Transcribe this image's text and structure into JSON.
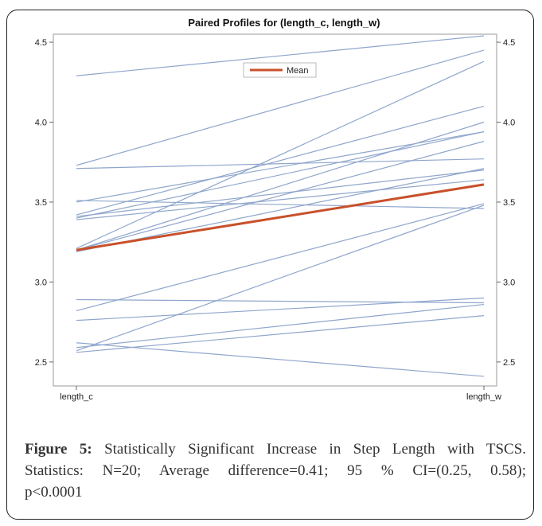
{
  "chart_data": {
    "type": "line",
    "title": "Paired Profiles for (length_c, length_w)",
    "categories": [
      "length_c",
      "length_w"
    ],
    "ylim": [
      2.35,
      4.55
    ],
    "yticks": [
      "2.5",
      "3.0",
      "3.5",
      "4.0",
      "4.5"
    ],
    "ytick_values": [
      2.5,
      3.0,
      3.5,
      4.0,
      4.5
    ],
    "grid": false,
    "legend": {
      "position": "top-center",
      "label": "Mean"
    },
    "colors": {
      "profile": "#8fa6cc",
      "mean": "#c8502a",
      "axis": "#888888"
    },
    "profiles": [
      [
        4.29,
        4.54
      ],
      [
        3.73,
        4.45
      ],
      [
        3.71,
        3.77
      ],
      [
        3.51,
        3.46
      ],
      [
        3.5,
        3.94
      ],
      [
        3.42,
        4.1
      ],
      [
        3.41,
        3.7
      ],
      [
        3.4,
        3.94
      ],
      [
        3.39,
        3.64
      ],
      [
        3.21,
        4.38
      ],
      [
        3.2,
        4.0
      ],
      [
        3.2,
        3.88
      ],
      [
        3.19,
        3.71
      ],
      [
        2.89,
        2.87
      ],
      [
        2.82,
        3.49
      ],
      [
        2.76,
        2.9
      ],
      [
        2.62,
        2.41
      ],
      [
        2.59,
        2.86
      ],
      [
        2.57,
        3.48
      ],
      [
        2.56,
        2.79
      ]
    ],
    "mean": [
      3.2,
      3.61
    ]
  },
  "caption": {
    "label": "Figure 5:",
    "lines": [
      "Statistically Significant Increase in Step Length with TSCS.",
      "Statistics: N=20; Average difference=0.41; 95 % CI=(0.25, 0.58);",
      "p<0.0001"
    ]
  }
}
